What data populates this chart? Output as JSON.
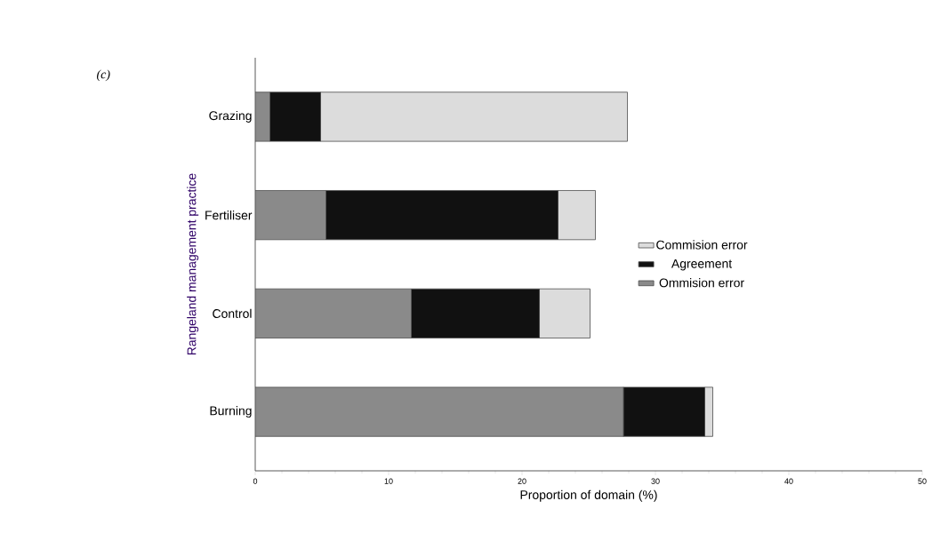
{
  "chart_data": {
    "type": "bar",
    "orientation": "horizontal",
    "stacked": true,
    "xlabel": "Proportion of domain (%)",
    "ylabel": "Rangeland management practice",
    "annotations": [
      "(c)"
    ],
    "categories": [
      "Grazing",
      "Fertiliser",
      "Control",
      "Burning"
    ],
    "xlim": [
      0,
      50
    ],
    "xticks": [
      0,
      10,
      20,
      30,
      40,
      50
    ],
    "legend": "right",
    "series": [
      {
        "name": "Ommision error",
        "color": "#8a8a8a",
        "values": [
          1.1,
          5.3,
          11.7,
          27.6
        ]
      },
      {
        "name": "Agreement",
        "color": "#111111",
        "values": [
          3.8,
          17.4,
          9.6,
          6.1
        ]
      },
      {
        "name": "Commision error",
        "color": "#dcdcdc",
        "values": [
          23.0,
          2.8,
          3.8,
          0.6
        ]
      }
    ]
  }
}
